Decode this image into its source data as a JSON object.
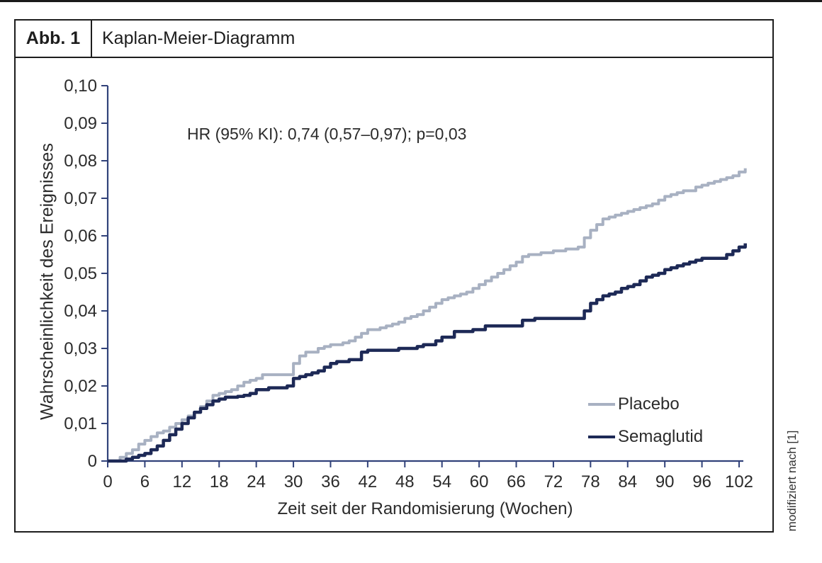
{
  "header": {
    "figure_label": "Abb. 1",
    "title": "Kaplan-Meier-Diagramm"
  },
  "footnote": "modifiziert nach [1]",
  "chart_data": {
    "type": "line",
    "subtype": "kaplan-meier-step",
    "title": "Kaplan-Meier-Diagramm",
    "annotation": "HR (95% KI): 0,74 (0,57–0,97); p=0,03",
    "xlabel": "Zeit seit der Randomisierung (Wochen)",
    "ylabel": "Wahrscheinlichkeit des Ereignisses",
    "xlim": [
      0,
      103
    ],
    "ylim": [
      0,
      0.1
    ],
    "grid": false,
    "legend_position": "lower right",
    "axis_color": "#31427a",
    "text_color": "#2b2b2b",
    "x_ticks": [
      {
        "v": 0,
        "label": "0"
      },
      {
        "v": 6,
        "label": "6"
      },
      {
        "v": 12,
        "label": "12"
      },
      {
        "v": 18,
        "label": "18"
      },
      {
        "v": 24,
        "label": "24"
      },
      {
        "v": 30,
        "label": "30"
      },
      {
        "v": 36,
        "label": "36"
      },
      {
        "v": 42,
        "label": "42"
      },
      {
        "v": 48,
        "label": "48"
      },
      {
        "v": 54,
        "label": "54"
      },
      {
        "v": 60,
        "label": "60"
      },
      {
        "v": 66,
        "label": "66"
      },
      {
        "v": 72,
        "label": "72"
      },
      {
        "v": 78,
        "label": "78"
      },
      {
        "v": 84,
        "label": "84"
      },
      {
        "v": 90,
        "label": "90"
      },
      {
        "v": 96,
        "label": "96"
      },
      {
        "v": 102,
        "label": "102"
      }
    ],
    "y_ticks": [
      {
        "v": 0,
        "label": "0"
      },
      {
        "v": 0.01,
        "label": "0,01"
      },
      {
        "v": 0.02,
        "label": "0,02"
      },
      {
        "v": 0.03,
        "label": "0,03"
      },
      {
        "v": 0.04,
        "label": "0,04"
      },
      {
        "v": 0.05,
        "label": "0,05"
      },
      {
        "v": 0.06,
        "label": "0,06"
      },
      {
        "v": 0.07,
        "label": "0,07"
      },
      {
        "v": 0.08,
        "label": "0,08"
      },
      {
        "v": 0.09,
        "label": "0,09"
      },
      {
        "v": 0.1,
        "label": "0,10"
      }
    ],
    "series": [
      {
        "name": "Placebo",
        "color": "#a8b1c2",
        "line_width": 4,
        "points": [
          [
            0,
            0
          ],
          [
            2,
            0.001
          ],
          [
            3,
            0.002
          ],
          [
            4,
            0.003
          ],
          [
            5,
            0.0045
          ],
          [
            6,
            0.0055
          ],
          [
            7,
            0.0065
          ],
          [
            8,
            0.0075
          ],
          [
            9,
            0.008
          ],
          [
            10,
            0.009
          ],
          [
            11,
            0.01
          ],
          [
            12,
            0.011
          ],
          [
            13,
            0.012
          ],
          [
            14,
            0.013
          ],
          [
            15,
            0.0145
          ],
          [
            16,
            0.016
          ],
          [
            17,
            0.0175
          ],
          [
            18,
            0.018
          ],
          [
            19,
            0.0185
          ],
          [
            20,
            0.019
          ],
          [
            21,
            0.02
          ],
          [
            22,
            0.021
          ],
          [
            23,
            0.0215
          ],
          [
            24,
            0.022
          ],
          [
            25,
            0.023
          ],
          [
            29,
            0.023
          ],
          [
            30,
            0.026
          ],
          [
            31,
            0.028
          ],
          [
            32,
            0.029
          ],
          [
            34,
            0.03
          ],
          [
            35,
            0.0305
          ],
          [
            36,
            0.031
          ],
          [
            38,
            0.0315
          ],
          [
            39,
            0.032
          ],
          [
            40,
            0.033
          ],
          [
            41,
            0.034
          ],
          [
            42,
            0.035
          ],
          [
            44,
            0.0355
          ],
          [
            45,
            0.036
          ],
          [
            46,
            0.0365
          ],
          [
            47,
            0.037
          ],
          [
            48,
            0.038
          ],
          [
            49,
            0.0385
          ],
          [
            50,
            0.039
          ],
          [
            51,
            0.04
          ],
          [
            52,
            0.041
          ],
          [
            53,
            0.042
          ],
          [
            54,
            0.043
          ],
          [
            55,
            0.0435
          ],
          [
            56,
            0.044
          ],
          [
            57,
            0.0445
          ],
          [
            58,
            0.045
          ],
          [
            59,
            0.046
          ],
          [
            60,
            0.047
          ],
          [
            61,
            0.048
          ],
          [
            62,
            0.049
          ],
          [
            63,
            0.05
          ],
          [
            64,
            0.051
          ],
          [
            65,
            0.052
          ],
          [
            66,
            0.053
          ],
          [
            67,
            0.0545
          ],
          [
            68,
            0.055
          ],
          [
            70,
            0.0555
          ],
          [
            72,
            0.056
          ],
          [
            74,
            0.0565
          ],
          [
            76,
            0.057
          ],
          [
            77,
            0.0595
          ],
          [
            78,
            0.0615
          ],
          [
            79,
            0.063
          ],
          [
            80,
            0.0645
          ],
          [
            81,
            0.065
          ],
          [
            82,
            0.0655
          ],
          [
            83,
            0.066
          ],
          [
            84,
            0.0665
          ],
          [
            85,
            0.067
          ],
          [
            86,
            0.0675
          ],
          [
            87,
            0.068
          ],
          [
            88,
            0.0685
          ],
          [
            89,
            0.0695
          ],
          [
            90,
            0.0705
          ],
          [
            91,
            0.071
          ],
          [
            92,
            0.0715
          ],
          [
            93,
            0.072
          ],
          [
            95,
            0.073
          ],
          [
            96,
            0.0735
          ],
          [
            97,
            0.074
          ],
          [
            98,
            0.0745
          ],
          [
            99,
            0.075
          ],
          [
            100,
            0.0755
          ],
          [
            101,
            0.076
          ],
          [
            102,
            0.077
          ],
          [
            103,
            0.078
          ]
        ]
      },
      {
        "name": "Semaglutid",
        "color": "#1d2956",
        "line_width": 4.5,
        "points": [
          [
            0,
            0
          ],
          [
            3,
            0.0005
          ],
          [
            4,
            0.001
          ],
          [
            5,
            0.0015
          ],
          [
            6,
            0.002
          ],
          [
            7,
            0.003
          ],
          [
            8,
            0.004
          ],
          [
            9,
            0.0055
          ],
          [
            10,
            0.007
          ],
          [
            11,
            0.0085
          ],
          [
            12,
            0.01
          ],
          [
            13,
            0.0115
          ],
          [
            14,
            0.013
          ],
          [
            15,
            0.014
          ],
          [
            16,
            0.015
          ],
          [
            17,
            0.016
          ],
          [
            18,
            0.0165
          ],
          [
            19,
            0.017
          ],
          [
            21,
            0.0172
          ],
          [
            22,
            0.0175
          ],
          [
            23,
            0.018
          ],
          [
            24,
            0.019
          ],
          [
            26,
            0.0195
          ],
          [
            29,
            0.02
          ],
          [
            30,
            0.022
          ],
          [
            31,
            0.0225
          ],
          [
            32,
            0.023
          ],
          [
            33,
            0.0235
          ],
          [
            34,
            0.024
          ],
          [
            35,
            0.025
          ],
          [
            36,
            0.026
          ],
          [
            37,
            0.0265
          ],
          [
            39,
            0.027
          ],
          [
            40,
            0.027
          ],
          [
            41,
            0.029
          ],
          [
            42,
            0.0295
          ],
          [
            46,
            0.0295
          ],
          [
            47,
            0.03
          ],
          [
            49,
            0.03
          ],
          [
            50,
            0.0305
          ],
          [
            51,
            0.031
          ],
          [
            53,
            0.032
          ],
          [
            54,
            0.033
          ],
          [
            55,
            0.033
          ],
          [
            56,
            0.0345
          ],
          [
            58,
            0.0345
          ],
          [
            59,
            0.035
          ],
          [
            60,
            0.035
          ],
          [
            61,
            0.036
          ],
          [
            66,
            0.036
          ],
          [
            67,
            0.0375
          ],
          [
            69,
            0.038
          ],
          [
            76,
            0.038
          ],
          [
            77,
            0.04
          ],
          [
            78,
            0.042
          ],
          [
            79,
            0.043
          ],
          [
            80,
            0.044
          ],
          [
            81,
            0.0445
          ],
          [
            82,
            0.045
          ],
          [
            83,
            0.046
          ],
          [
            84,
            0.0465
          ],
          [
            85,
            0.047
          ],
          [
            86,
            0.048
          ],
          [
            87,
            0.049
          ],
          [
            88,
            0.0495
          ],
          [
            89,
            0.05
          ],
          [
            90,
            0.051
          ],
          [
            91,
            0.0515
          ],
          [
            92,
            0.052
          ],
          [
            93,
            0.0525
          ],
          [
            94,
            0.053
          ],
          [
            95,
            0.0535
          ],
          [
            96,
            0.054
          ],
          [
            99,
            0.054
          ],
          [
            100,
            0.055
          ],
          [
            101,
            0.056
          ],
          [
            102,
            0.057
          ],
          [
            103,
            0.058
          ]
        ]
      }
    ]
  }
}
